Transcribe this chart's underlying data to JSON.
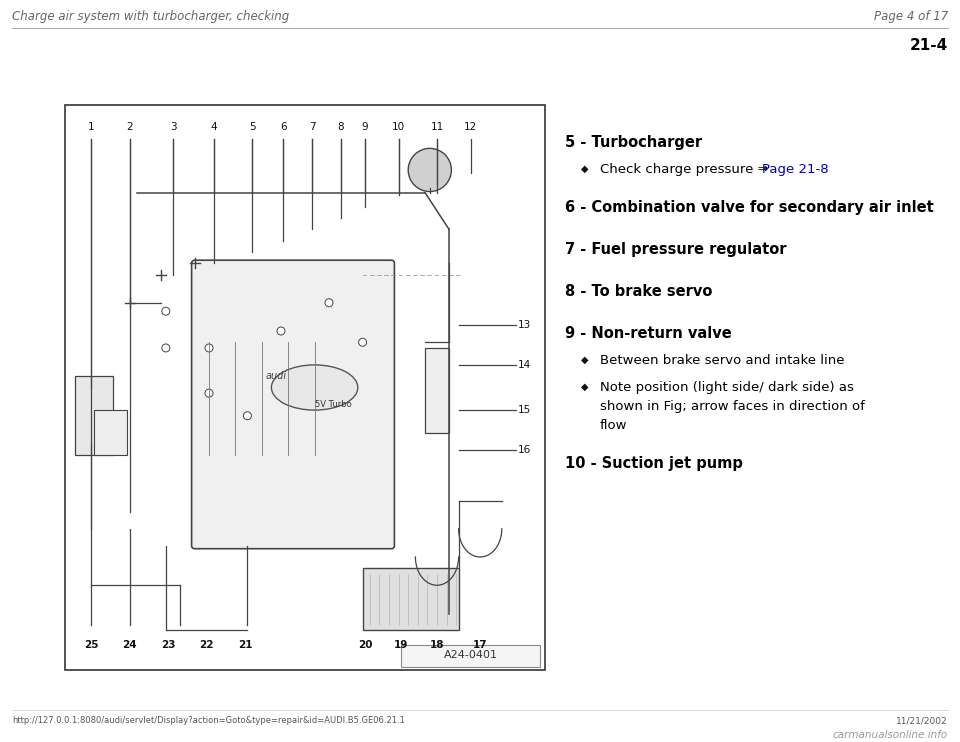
{
  "page_title_left": "Charge air system with turbocharger, checking",
  "page_title_right": "Page 4 of 17",
  "page_number": "21-4",
  "bg_color": "#ffffff",
  "text_color": "#000000",
  "link_color": "#0000bb",
  "header_color": "#666666",
  "line_color": "#888888",
  "diagram_line_color": "#444444",
  "title_fontsize": 8.5,
  "body_fontsize": 10.5,
  "bullet_fontsize": 9.5,
  "items": [
    {
      "number": "5",
      "label": "Turbocharger",
      "bold": true,
      "bullets": [
        {
          "text_black": "Check charge pressure ⇒ ",
          "text_blue": "Page 21-8",
          "has_link": true
        }
      ]
    },
    {
      "number": "6",
      "label": "Combination valve for secondary air inlet",
      "bold": true,
      "bullets": []
    },
    {
      "number": "7",
      "label": "Fuel pressure regulator",
      "bold": true,
      "bullets": []
    },
    {
      "number": "8",
      "label": "To brake servo",
      "bold": true,
      "bullets": []
    },
    {
      "number": "9",
      "label": "Non-return valve",
      "bold": true,
      "bullets": [
        {
          "text_black": "Between brake servo and intake line",
          "text_blue": null,
          "has_link": false
        },
        {
          "text_black": "Note position (light side/ dark side) as\nshown in Fig; arrow faces in direction of\nflow",
          "text_blue": null,
          "has_link": false
        }
      ]
    },
    {
      "number": "10",
      "label": "Suction jet pump",
      "bold": true,
      "bullets": []
    }
  ],
  "footer_url": "http://127.0.0.1:8080/audi/servlet/Display?action=Goto&type=repair&id=AUDI.B5.GE06.21.1",
  "footer_date": "11/21/2002",
  "footer_logo": "carmanualsonline.info",
  "diagram_label": "A24-0401",
  "top_nums": [
    "1",
    "2",
    "3",
    "4",
    "5",
    "6",
    "7",
    "8",
    "9",
    "10",
    "11",
    "12"
  ],
  "bottom_nums_left": [
    "25",
    "24",
    "23",
    "22",
    "21"
  ],
  "bottom_nums_right": [
    "20",
    "19",
    "18",
    "17"
  ],
  "right_side_nums": [
    "13",
    "14",
    "15",
    "16"
  ],
  "bullet_diamond": "◆"
}
